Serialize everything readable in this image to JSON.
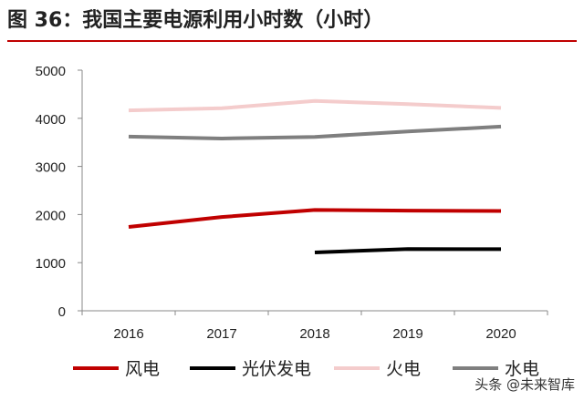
{
  "header": {
    "title": "图 36：我国主要电源利用小时数（小时）"
  },
  "watermark": {
    "text": "头条 @未来智库"
  },
  "chart_data": {
    "type": "line",
    "title": "图 36：我国主要电源利用小时数（小时）",
    "xlabel": "",
    "ylabel": "",
    "categories": [
      "2016",
      "2017",
      "2018",
      "2019",
      "2020"
    ],
    "ylim": [
      0,
      5000
    ],
    "yticks": [
      0,
      1000,
      2000,
      3000,
      4000,
      5000
    ],
    "grid": false,
    "legend_position": "bottom",
    "series": [
      {
        "name": "风电",
        "color": "#c00000",
        "values": [
          1742,
          1948,
          2095,
          2082,
          2073
        ]
      },
      {
        "name": "光伏发电",
        "color": "#000000",
        "values": [
          null,
          null,
          1212,
          1285,
          1281
        ]
      },
      {
        "name": "火电",
        "color": "#f4cccc",
        "values": [
          4165,
          4209,
          4361,
          4293,
          4216
        ]
      },
      {
        "name": "水电",
        "color": "#7f7f7f",
        "values": [
          3619,
          3579,
          3613,
          3726,
          3827
        ]
      }
    ]
  }
}
